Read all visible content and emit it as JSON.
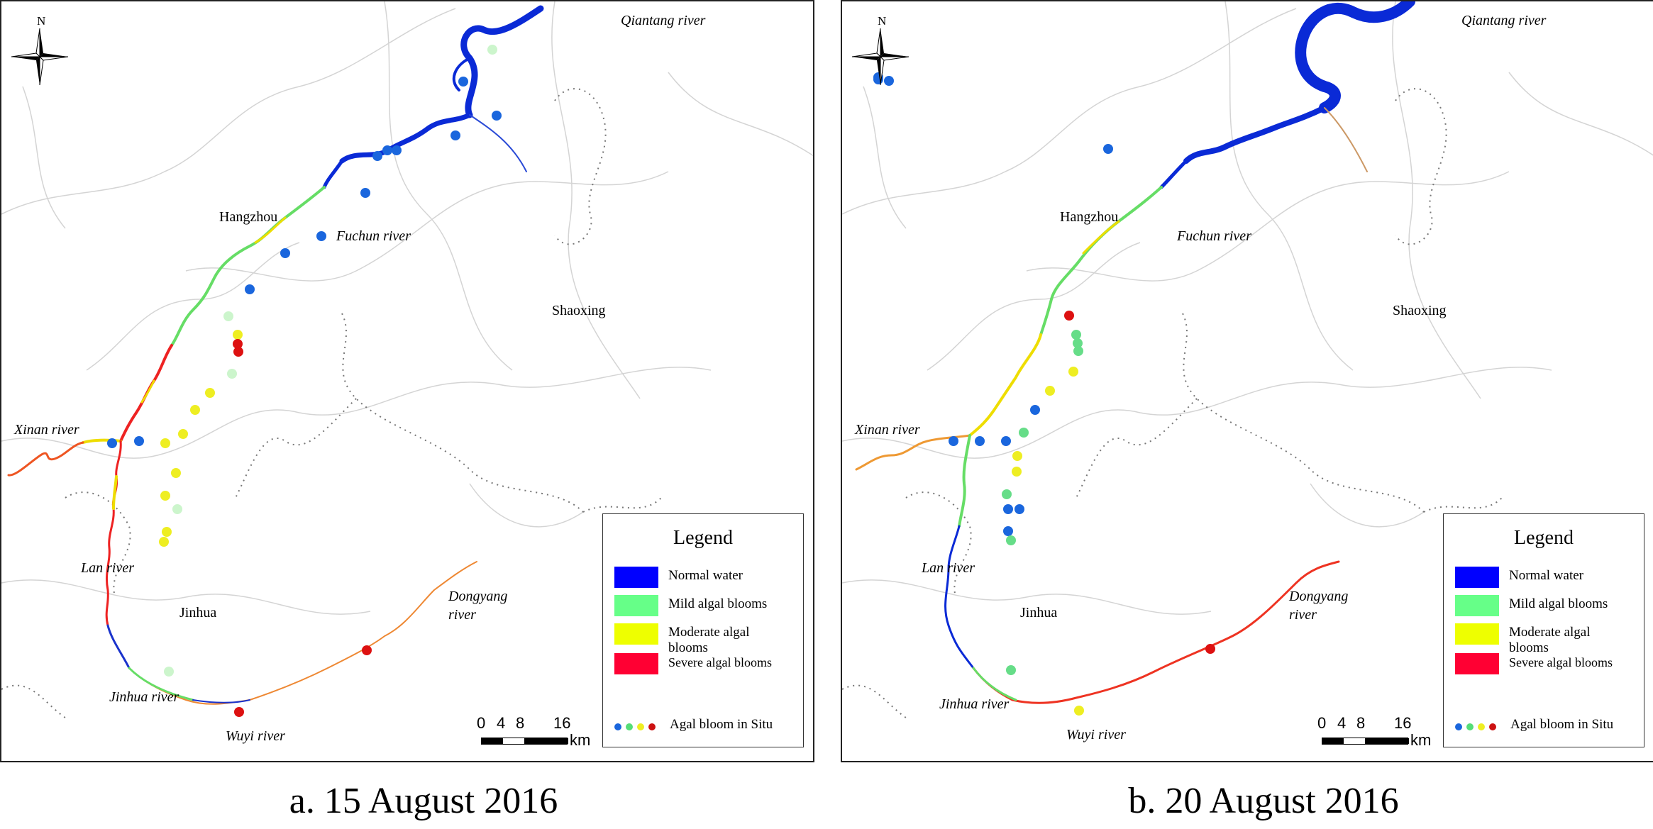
{
  "panels": [
    {
      "caption": "a. 15 August 2016",
      "labels": {
        "north": "N",
        "qiantang": "Qiantang river",
        "hangzhou": "Hangzhou",
        "fuchun": "Fuchun river",
        "shaoxing": "Shaoxing",
        "xinan": "Xinan river",
        "lan": "Lan river",
        "jinhua": "Jinhua",
        "dongyang": "Dongyang river",
        "jinhua_river": "Jinhua river",
        "wuyi": "Wuyi river"
      }
    },
    {
      "caption": "b. 20 August 2016",
      "labels": {
        "north": "N",
        "qiantang": "Qiantang river",
        "hangzhou": "Hangzhou",
        "fuchun": "Fuchun river",
        "shaoxing": "Shaoxing",
        "xinan": "Xinan river",
        "lan": "Lan river",
        "jinhua": "Jinhua",
        "dongyang": "Dongyang river",
        "jinhua_river": "Jinhua river",
        "wuyi": "Wuyi river"
      }
    }
  ],
  "legend": {
    "title": "Legend",
    "items": [
      {
        "label": "Normal water",
        "color": "#0000ff"
      },
      {
        "label": "Mild algal blooms",
        "color": "#66ff88"
      },
      {
        "label": "Moderate algal blooms",
        "color": "#eeff00"
      },
      {
        "label": "Severe algal blooms",
        "color": "#ff0033"
      }
    ],
    "situ_label": "Agal bloom in Situ",
    "situ_colors": [
      "#1a66dd",
      "#55dd77",
      "#eeee22",
      "#cc1111"
    ]
  },
  "scale_bar": {
    "ticks": [
      "0",
      "4",
      "8",
      "16"
    ],
    "unit": "km"
  },
  "colors": {
    "normal": "#0a2ad6",
    "mild": "#66dd66",
    "moderate": "#eedd00",
    "severe": "#ee2222",
    "site_blue": "#1a66dd",
    "site_green": "#66dd88",
    "site_yellow": "#eeee22",
    "site_red": "#dd1111"
  }
}
